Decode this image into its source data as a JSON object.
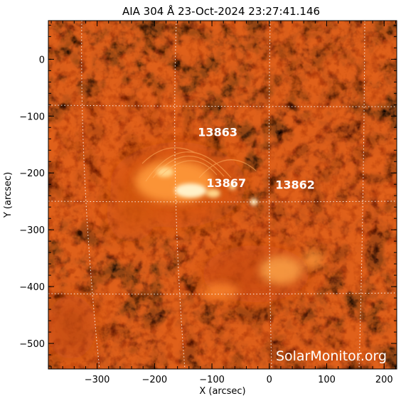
{
  "title": "AIA 304 Å 23-Oct-2024 23:27:41.146",
  "x_axis": {
    "label": "X (arcsec)",
    "range": [
      -385,
      222
    ],
    "ticks": [
      -300,
      -200,
      -100,
      0,
      100,
      200
    ],
    "tick_labels": [
      "−300",
      "−200",
      "−100",
      "0",
      "100",
      "200"
    ]
  },
  "y_axis": {
    "label": "Y (arcsec)",
    "range": [
      -545,
      68
    ],
    "ticks": [
      0,
      -100,
      -200,
      -300,
      -400,
      -500
    ],
    "tick_labels": [
      "0",
      "−100",
      "−200",
      "−300",
      "−400",
      "−500"
    ]
  },
  "active_regions": [
    {
      "id": "13863",
      "x": -90,
      "y": -135
    },
    {
      "id": "13867",
      "x": -75,
      "y": -225
    },
    {
      "id": "13862",
      "x": 45,
      "y": -228
    }
  ],
  "watermark": "SolarMonitor.org",
  "colors": {
    "background": "#000000",
    "chromosphere_dark": "#4a0a00",
    "chromosphere_mid": "#b83a08",
    "chromosphere_bright": "#ff8a2a",
    "flare_core": "#fff3d0",
    "grid": "#ffffff"
  }
}
